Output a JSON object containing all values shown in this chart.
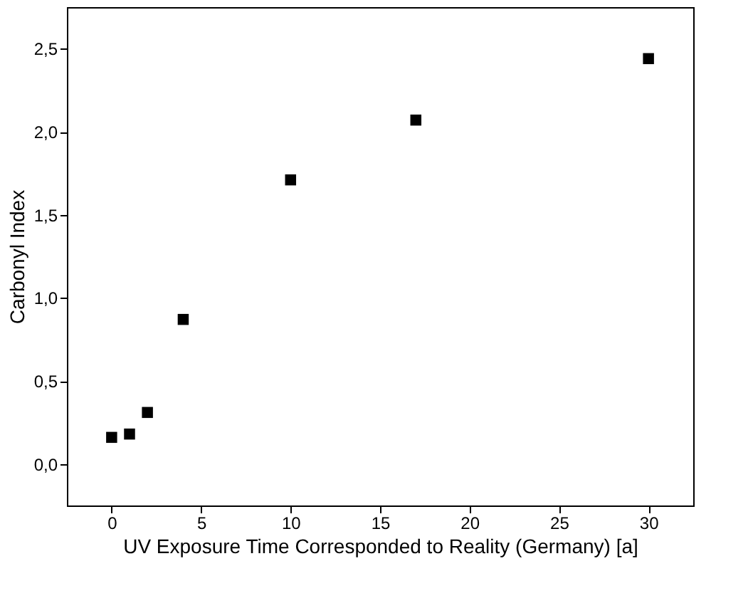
{
  "chart_data": {
    "type": "scatter",
    "xlabel": "UV Exposure Time Corresponded to Reality (Germany) [a]",
    "ylabel": "Carbonyl Index",
    "x": [
      0,
      1,
      2,
      4,
      10,
      17,
      30
    ],
    "series": [
      {
        "color": "#000000",
        "values": [
          0.16,
          0.18,
          0.31,
          0.87,
          1.71,
          2.07,
          2.44
        ]
      }
    ],
    "marker": "square",
    "grid": false,
    "legend": false,
    "xlim": [
      -2.5,
      32.5
    ],
    "xticks": [
      0,
      5,
      10,
      15,
      20,
      25,
      30
    ],
    "ylim": [
      -0.25,
      2.75
    ],
    "yticks": [
      {
        "value": 0,
        "label": "0,0"
      },
      {
        "value": 0.5,
        "label": "0,5"
      },
      {
        "value": 1,
        "label": "1,0"
      },
      {
        "value": 1.5,
        "label": "1,5"
      },
      {
        "value": 2,
        "label": "2,0"
      },
      {
        "value": 2.5,
        "label": "2,5"
      }
    ]
  }
}
